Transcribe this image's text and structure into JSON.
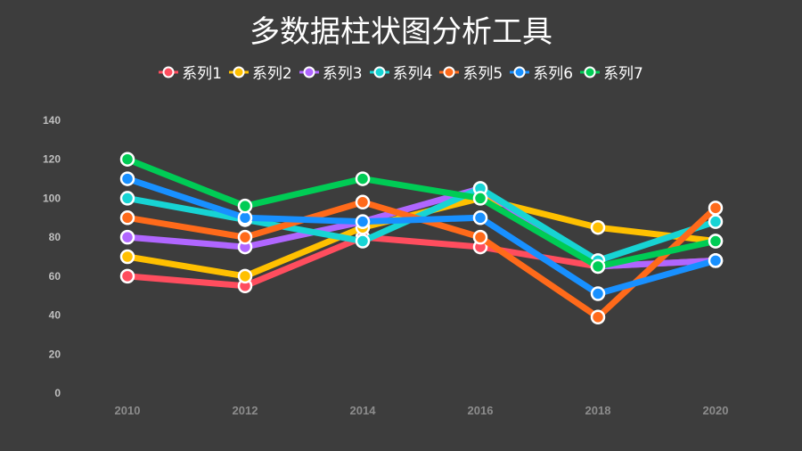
{
  "title": "多数据柱状图分析工具",
  "chart_data": {
    "type": "line",
    "title": "多数据柱状图分析工具",
    "xlabel": "",
    "ylabel": "",
    "categories": [
      "2010",
      "2012",
      "2014",
      "2016",
      "2018",
      "2020"
    ],
    "ylim": [
      0,
      140
    ],
    "yticks": [
      "0",
      "20",
      "40",
      "60",
      "80",
      "100",
      "120",
      "140"
    ],
    "grid": false,
    "legend_position": "top",
    "series": [
      {
        "name": "系列1",
        "color": "#ff4d5e",
        "values": [
          60,
          55,
          80,
          75,
          65,
          68
        ]
      },
      {
        "name": "系列2",
        "color": "#ffc000",
        "values": [
          70,
          60,
          85,
          100,
          85,
          78
        ]
      },
      {
        "name": "系列3",
        "color": "#b066ff",
        "values": [
          80,
          75,
          88,
          105,
          65,
          68
        ]
      },
      {
        "name": "系列4",
        "color": "#17d4d4",
        "values": [
          100,
          89,
          78,
          105,
          68,
          88
        ]
      },
      {
        "name": "系列5",
        "color": "#ff6a1a",
        "values": [
          90,
          80,
          98,
          80,
          39,
          95
        ]
      },
      {
        "name": "系列6",
        "color": "#1890ff",
        "values": [
          110,
          90,
          88,
          90,
          51,
          68
        ]
      },
      {
        "name": "系列7",
        "color": "#00cc55",
        "values": [
          120,
          96,
          110,
          100,
          65,
          78
        ]
      }
    ]
  }
}
